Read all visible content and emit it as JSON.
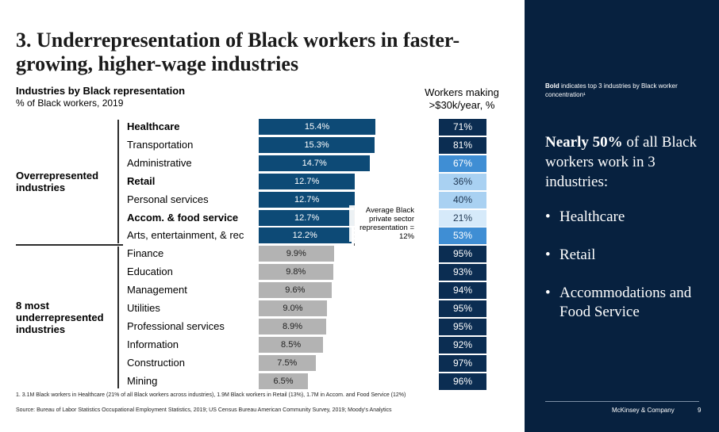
{
  "title": "3. Underrepresentation of Black workers in faster-growing, higher-wage industries",
  "chart_data": {
    "type": "bar",
    "title": "Industries by Black representation",
    "subtitle": "% of Black workers, 2019",
    "right_column_header": "Workers making >$30k/year, %",
    "groups": [
      {
        "label": "Overrepresented industries",
        "start": 0,
        "count": 7
      },
      {
        "label": "8 most underrepresented industries",
        "start": 7,
        "count": 8
      }
    ],
    "categories": [
      "Healthcare",
      "Transportation",
      "Administrative",
      "Retail",
      "Personal services",
      "Accom. & food service",
      "Arts, entertainment, & rec",
      "Finance",
      "Education",
      "Management",
      "Utilities",
      "Professional services",
      "Information",
      "Construction",
      "Mining"
    ],
    "bold": [
      true,
      false,
      false,
      true,
      false,
      true,
      false,
      false,
      false,
      false,
      false,
      false,
      false,
      false,
      false
    ],
    "series": [
      {
        "values": [
          15.4,
          15.3,
          14.7,
          12.7,
          12.7,
          12.7,
          12.2,
          9.9,
          9.8,
          9.6,
          9.0,
          8.9,
          8.5,
          7.5,
          6.5
        ]
      }
    ],
    "value_labels": [
      "15.4%",
      "15.3%",
      "14.7%",
      "12.7%",
      "12.7%",
      "12.7%",
      "12.2%",
      "9.9%",
      "9.8%",
      "9.6%",
      "9.0%",
      "8.9%",
      "8.5%",
      "7.5%",
      "6.5%"
    ],
    "workers_30k": [
      71,
      81,
      67,
      36,
      40,
      21,
      53,
      95,
      93,
      94,
      95,
      95,
      92,
      97,
      96
    ],
    "workers_30k_labels": [
      "71%",
      "81%",
      "67%",
      "36%",
      "40%",
      "21%",
      "53%",
      "95%",
      "93%",
      "94%",
      "95%",
      "95%",
      "92%",
      "97%",
      "96%"
    ],
    "reference_line": {
      "value": 12,
      "label": "Average Black private sector representation = 12%"
    },
    "colors": {
      "over": "#0d4a76",
      "under": "#b3b3b3",
      "heat_dark": "#0b2d52",
      "heat_mid": "#3f8ed4",
      "heat_light": "#a9d1f2",
      "heat_lightest": "#d6eafa"
    }
  },
  "footnote": "1.   3.1M Black workers in Healthcare (21% of all Black workers across industries), 1.9M Black workers in Retail (13%), 1.7M in Accom. and Food Service (12%)",
  "source": "Source: Bureau of Labor Statistics Occupational Employment Statistics, 2019; US Census Bureau American Community Survey, 2019; Moody's Analytics",
  "panel": {
    "note_bold": "Bold",
    "note_rest": " indicates top 3 industries by Black worker concentration¹",
    "headline_bold": "Nearly 50%",
    "headline_rest": " of all Black workers work in 3 industries:",
    "bullet_symbol": "•",
    "bullets": [
      "Healthcare",
      "Retail",
      "Accommodations and Food Service"
    ],
    "brand": "McKinsey & Company",
    "page": "9",
    "background": "#07213f"
  }
}
